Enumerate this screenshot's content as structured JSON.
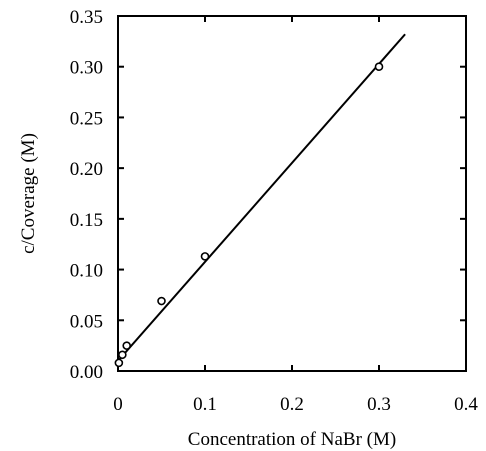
{
  "chart_data": {
    "type": "scatter",
    "xlabel": "Concentration of NaBr (M)",
    "ylabel": "c/Coverage (M)",
    "xlim": [
      0,
      0.4
    ],
    "ylim": [
      0,
      0.35
    ],
    "x_ticks": [
      0,
      0.1,
      0.2,
      0.3,
      0.4
    ],
    "x_tick_labels": [
      "0",
      "0.1",
      "0.2",
      "0.3",
      "0.4"
    ],
    "y_ticks": [
      0,
      0.05,
      0.1,
      0.15,
      0.2,
      0.25,
      0.3,
      0.35
    ],
    "y_tick_labels": [
      "0.00",
      "0.05",
      "0.10",
      "0.15",
      "0.20",
      "0.25",
      "0.30",
      "0.35"
    ],
    "grid": false,
    "series": [
      {
        "type": "scatter",
        "marker": "open-circle",
        "points": [
          {
            "x": 0.001,
            "y": 0.008
          },
          {
            "x": 0.005,
            "y": 0.016
          },
          {
            "x": 0.01,
            "y": 0.025
          },
          {
            "x": 0.05,
            "y": 0.069
          },
          {
            "x": 0.1,
            "y": 0.113
          },
          {
            "x": 0.3,
            "y": 0.3
          }
        ]
      },
      {
        "type": "line",
        "points": [
          {
            "x": 0.0,
            "y": 0.01
          },
          {
            "x": 0.33,
            "y": 0.332
          }
        ]
      }
    ],
    "colors": {
      "axis": "#000000",
      "marker": "#000000",
      "line": "#000000"
    }
  }
}
